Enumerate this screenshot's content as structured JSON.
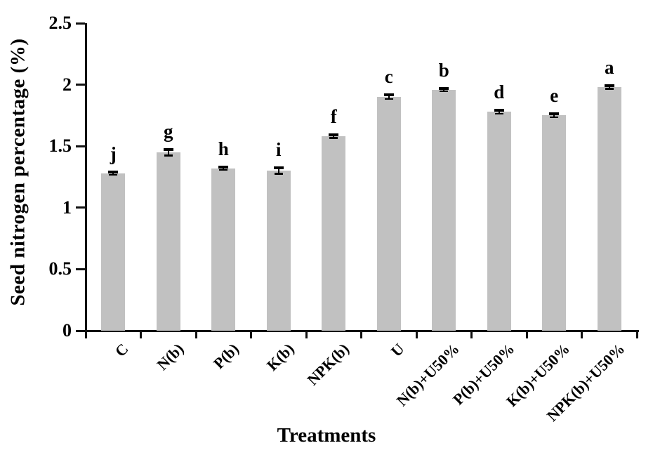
{
  "figure": {
    "background_color": "#ffffff",
    "bar_color": "#c1c1c1",
    "axis_color": "#111111",
    "error_bar_color": "#000000",
    "text_color": "#000000"
  },
  "chart_data": {
    "type": "bar",
    "title": "",
    "xlabel": "Treatments",
    "ylabel": "Seed nitrogen percentage (%)",
    "ylim": [
      0,
      2.5
    ],
    "ytick_step": 0.5,
    "yticks": [
      "0",
      "0.5",
      "1",
      "1.5",
      "2",
      "2.5"
    ],
    "grid": false,
    "legend_position": "none",
    "categories": [
      "C",
      "N(b)",
      "P(b)",
      "K(b)",
      "NPK(b)",
      "U",
      "N(b)+U50%",
      "P(b)+U50%",
      "K(b)+U50%",
      "NPK(b)+U50%"
    ],
    "values": [
      1.28,
      1.45,
      1.32,
      1.3,
      1.58,
      1.9,
      1.96,
      1.78,
      1.75,
      1.98
    ],
    "errors": [
      0.012,
      0.025,
      0.012,
      0.022,
      0.012,
      0.016,
      0.012,
      0.014,
      0.012,
      0.012
    ],
    "sig_letters": [
      "j",
      "g",
      "h",
      "i",
      "f",
      "c",
      "b",
      "d",
      "e",
      "a"
    ]
  }
}
